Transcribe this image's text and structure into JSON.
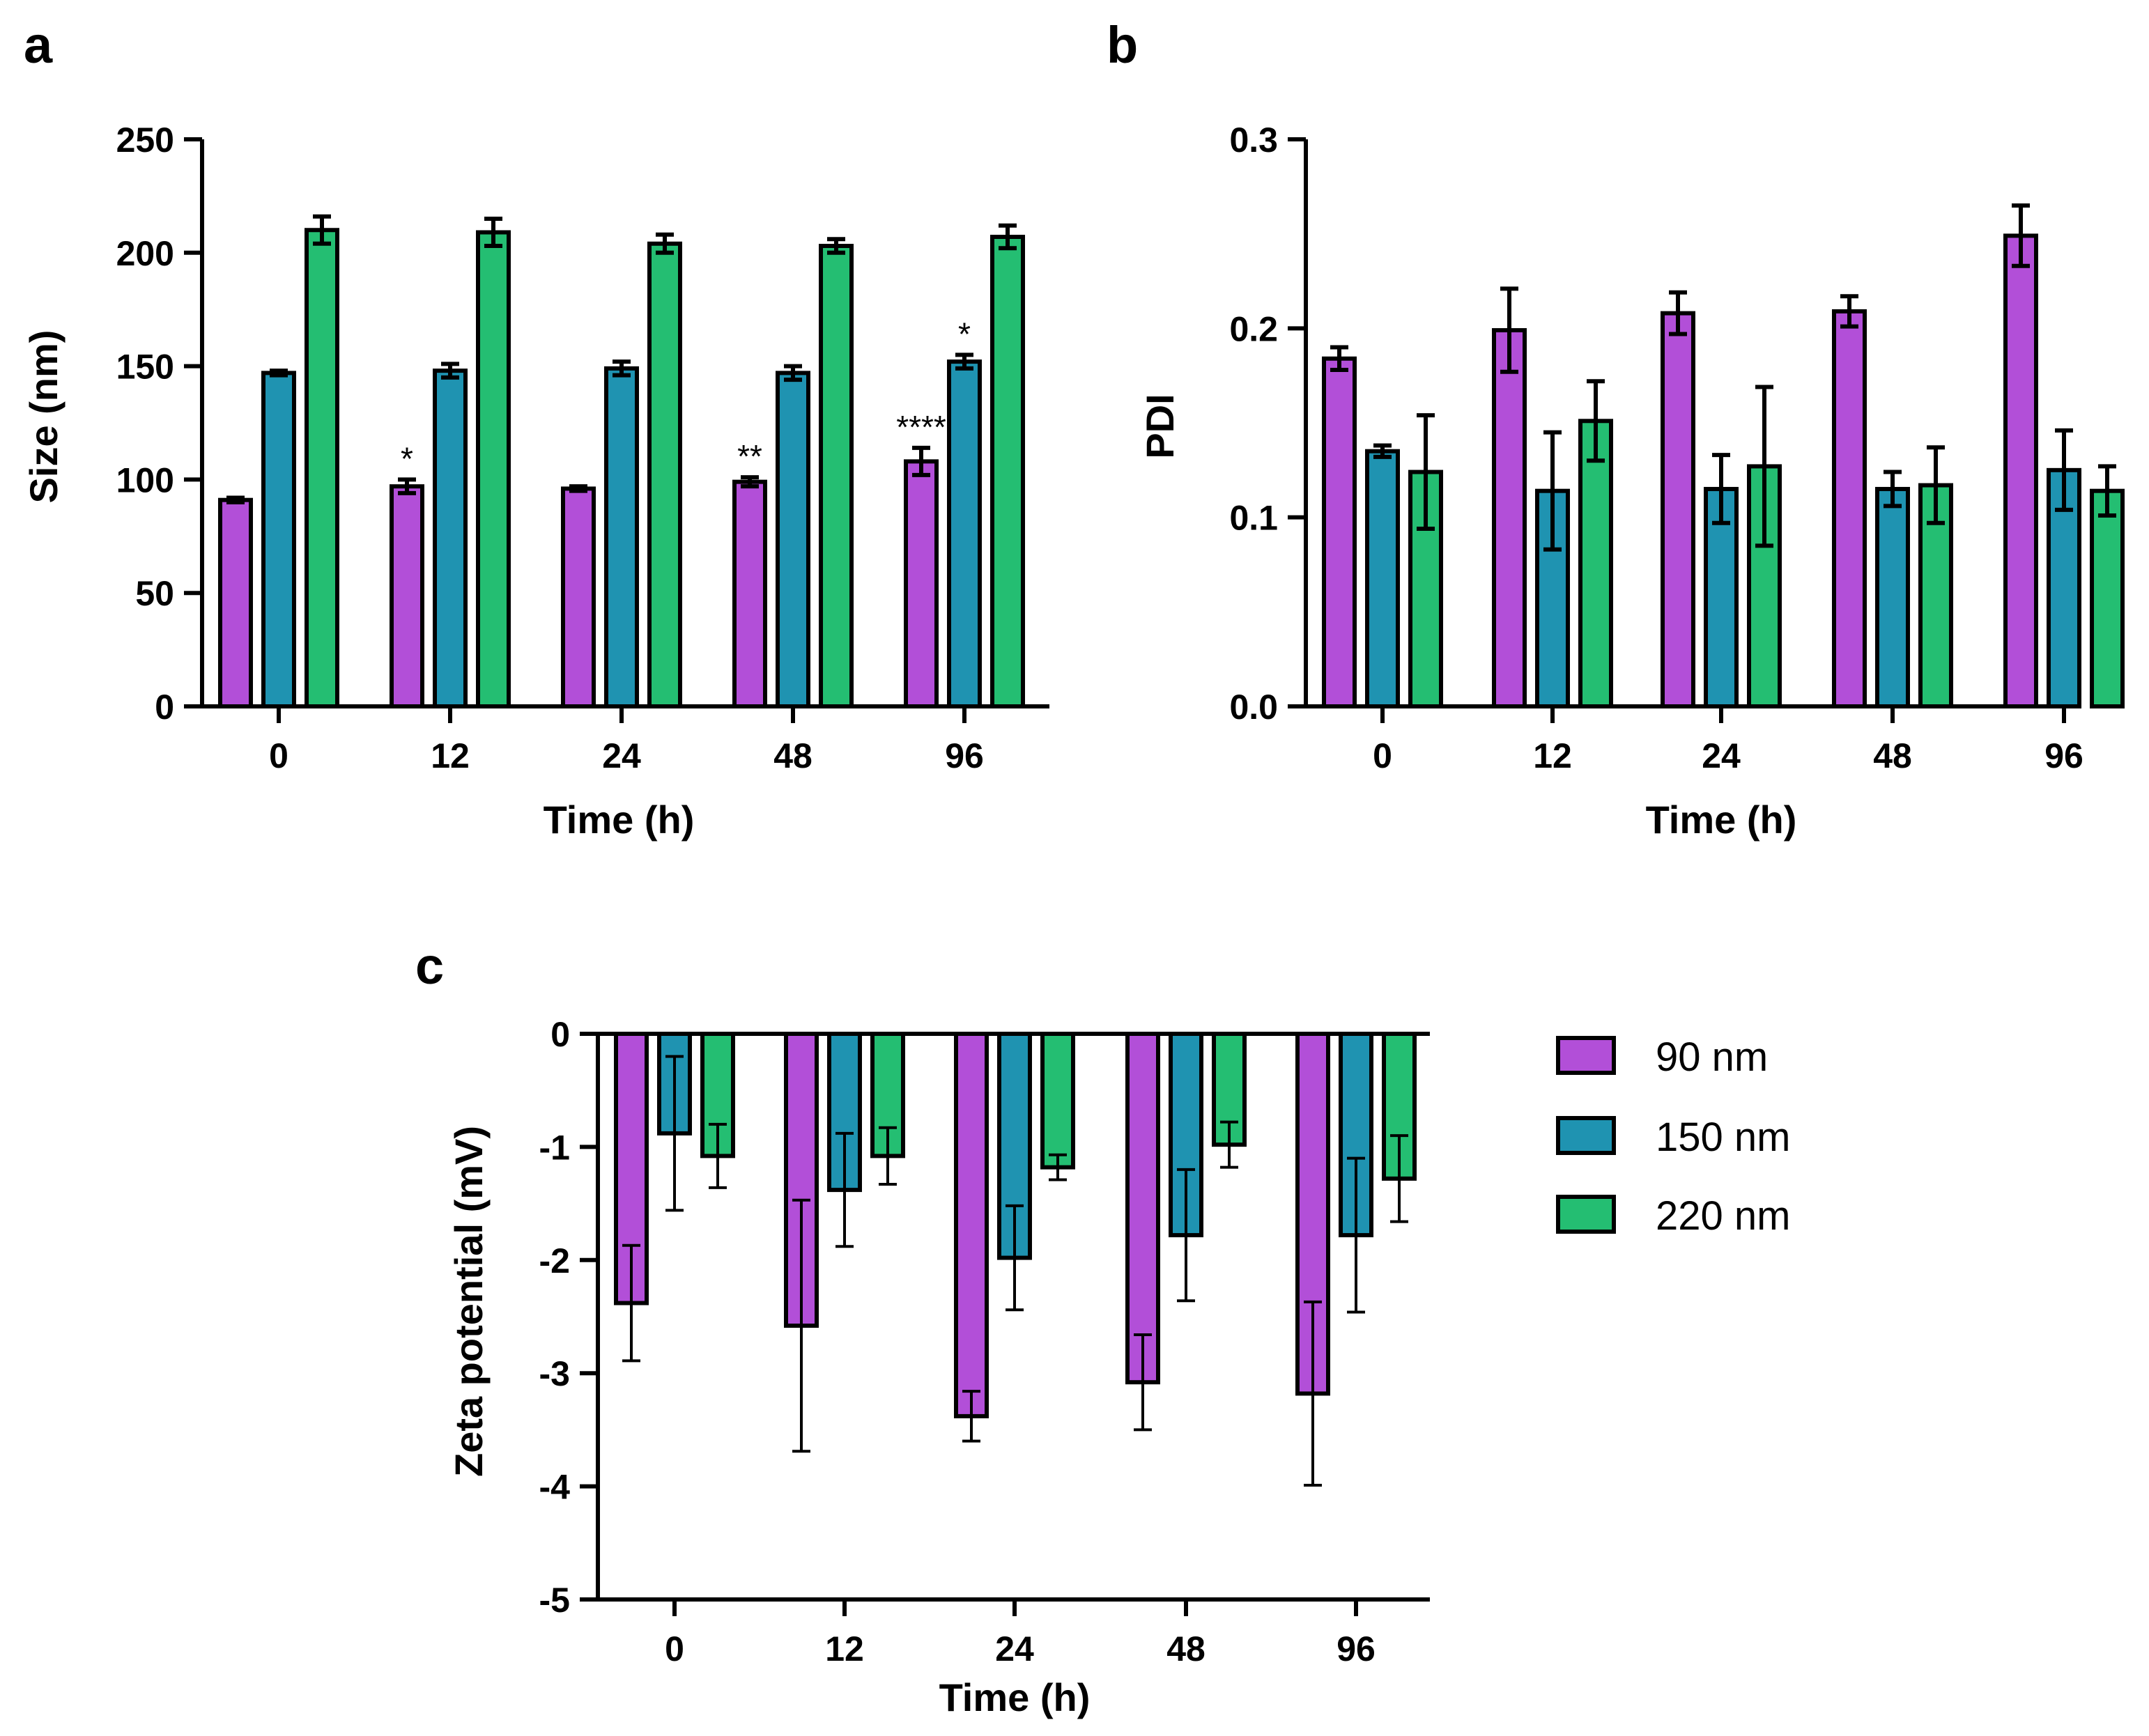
{
  "legend": [
    {
      "label": "90 nm",
      "color": "#b24fd8"
    },
    {
      "label": "150 nm",
      "color": "#1f93b1"
    },
    {
      "label": "220 nm",
      "color": "#24be72"
    }
  ],
  "chart_data": [
    {
      "panel": "a",
      "type": "bar",
      "xlabel": "Time (h)",
      "ylabel": "Size (nm)",
      "ylim": [
        0,
        250
      ],
      "yticks": [
        "0",
        "50",
        "100",
        "150",
        "200",
        "250"
      ],
      "categories": [
        "0",
        "12",
        "24",
        "48",
        "96"
      ],
      "series": [
        {
          "name": "90 nm",
          "values": [
            91,
            97,
            96,
            99,
            108
          ],
          "errors": [
            1,
            3,
            1,
            2,
            6
          ]
        },
        {
          "name": "150 nm",
          "values": [
            147,
            148,
            149,
            147,
            152
          ],
          "errors": [
            1,
            3,
            3,
            3,
            3
          ]
        },
        {
          "name": "220 nm",
          "values": [
            210,
            209,
            204,
            203,
            207
          ],
          "errors": [
            6,
            6,
            4,
            3,
            5
          ]
        }
      ],
      "annotations": [
        {
          "category": "12",
          "series": "90 nm",
          "text": "*"
        },
        {
          "category": "48",
          "series": "90 nm",
          "text": "**"
        },
        {
          "category": "96",
          "series": "90 nm",
          "text": "****"
        },
        {
          "category": "96",
          "series": "150 nm",
          "text": "*"
        }
      ]
    },
    {
      "panel": "b",
      "type": "bar",
      "xlabel": "Time (h)",
      "ylabel": "PDI",
      "ylim": [
        0,
        0.3
      ],
      "yticks": [
        "0.0",
        "0.1",
        "0.2",
        "0.3"
      ],
      "categories": [
        "0",
        "12",
        "24",
        "48",
        "96"
      ],
      "series": [
        {
          "name": "90 nm",
          "values": [
            0.184,
            0.199,
            0.208,
            0.209,
            0.249
          ],
          "errors": [
            0.006,
            0.022,
            0.011,
            0.008,
            0.016
          ]
        },
        {
          "name": "150 nm",
          "values": [
            0.135,
            0.114,
            0.115,
            0.115,
            0.125
          ],
          "errors": [
            0.003,
            0.031,
            0.018,
            0.009,
            0.021
          ]
        },
        {
          "name": "220 nm",
          "values": [
            0.124,
            0.151,
            0.127,
            0.117,
            0.114
          ],
          "errors": [
            0.03,
            0.021,
            0.042,
            0.02,
            0.013
          ]
        }
      ],
      "annotations": []
    },
    {
      "panel": "c",
      "type": "bar",
      "xlabel": "Time (h)",
      "ylabel": "Zeta potential (mV)",
      "ylim": [
        -5,
        0
      ],
      "yticks": [
        "0",
        "-1",
        "-2",
        "-3",
        "-4",
        "-5"
      ],
      "categories": [
        "0",
        "12",
        "24",
        "48",
        "96"
      ],
      "series": [
        {
          "name": "90 nm",
          "values": [
            -2.38,
            -2.58,
            -3.38,
            -3.08,
            -3.18
          ],
          "errors": [
            0.51,
            1.11,
            0.22,
            0.42,
            0.81
          ]
        },
        {
          "name": "150 nm",
          "values": [
            -0.88,
            -1.38,
            -1.98,
            -1.78,
            -1.78
          ],
          "errors": [
            0.68,
            0.5,
            0.46,
            0.58,
            0.68
          ]
        },
        {
          "name": "220 nm",
          "values": [
            -1.08,
            -1.08,
            -1.18,
            -0.98,
            -1.28
          ],
          "errors": [
            0.28,
            0.25,
            0.11,
            0.2,
            0.38
          ]
        }
      ],
      "annotations": []
    }
  ]
}
